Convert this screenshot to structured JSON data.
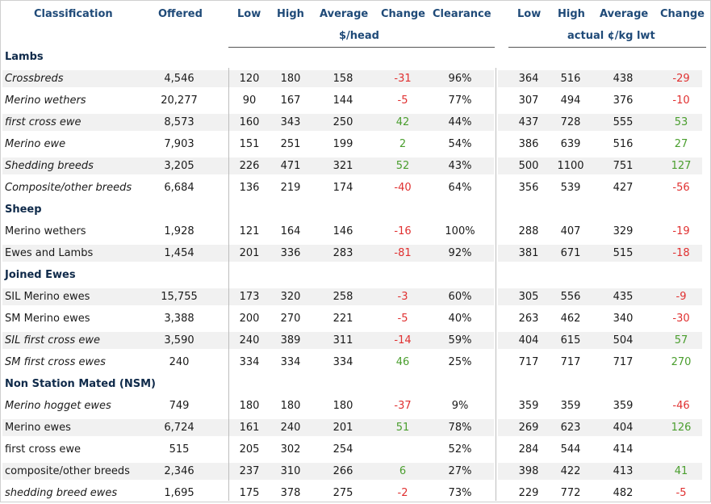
{
  "header": {
    "classification": "Classification",
    "offered": "Offered",
    "low": "Low",
    "high": "High",
    "average": "Average",
    "change": "Change",
    "clearance": "Clearance",
    "low_kg": "Low",
    "high_kg": "High",
    "average_kg": "Average",
    "change_kg": "Change",
    "unit_head": "$/head",
    "unit_kg": "actual ¢/kg lwt"
  },
  "rows": [
    {
      "type": "section",
      "label": "Lambs"
    },
    {
      "type": "data",
      "label": "Crossbreds",
      "italic": true,
      "offered": "4,546",
      "low": "120",
      "high": "180",
      "avg": "158",
      "chg": "-31",
      "clr": "96%",
      "klow": "364",
      "khigh": "516",
      "kavg": "438",
      "kchg": "-29"
    },
    {
      "type": "data",
      "label": "Merino wethers",
      "italic": true,
      "offered": "20,277",
      "low": "90",
      "high": "167",
      "avg": "144",
      "chg": "-5",
      "clr": "77%",
      "klow": "307",
      "khigh": "494",
      "kavg": "376",
      "kchg": "-10"
    },
    {
      "type": "data",
      "label": "first cross ewe",
      "italic": true,
      "offered": "8,573",
      "low": "160",
      "high": "343",
      "avg": "250",
      "chg": "42",
      "clr": "44%",
      "klow": "437",
      "khigh": "728",
      "kavg": "555",
      "kchg": "53"
    },
    {
      "type": "data",
      "label": "Merino ewe",
      "italic": true,
      "offered": "7,903",
      "low": "151",
      "high": "251",
      "avg": "199",
      "chg": "2",
      "clr": "54%",
      "klow": "386",
      "khigh": "639",
      "kavg": "516",
      "kchg": "27"
    },
    {
      "type": "data",
      "label": "Shedding breeds",
      "italic": true,
      "offered": "3,205",
      "low": "226",
      "high": "471",
      "avg": "321",
      "chg": "52",
      "clr": "43%",
      "klow": "500",
      "khigh": "1100",
      "kavg": "751",
      "kchg": "127"
    },
    {
      "type": "data",
      "label": "Composite/other breeds",
      "italic": true,
      "offered": "6,684",
      "low": "136",
      "high": "219",
      "avg": "174",
      "chg": "-40",
      "clr": "64%",
      "klow": "356",
      "khigh": "539",
      "kavg": "427",
      "kchg": "-56"
    },
    {
      "type": "section",
      "label": "Sheep"
    },
    {
      "type": "data",
      "label": "Merino wethers",
      "italic": false,
      "offered": "1,928",
      "low": "121",
      "high": "164",
      "avg": "146",
      "chg": "-16",
      "clr": "100%",
      "klow": "288",
      "khigh": "407",
      "kavg": "329",
      "kchg": "-19"
    },
    {
      "type": "data",
      "label": "Ewes and Lambs",
      "italic": false,
      "offered": "1,454",
      "low": "201",
      "high": "336",
      "avg": "283",
      "chg": "-81",
      "clr": "92%",
      "klow": "381",
      "khigh": "671",
      "kavg": "515",
      "kchg": "-18"
    },
    {
      "type": "section",
      "label": "Joined Ewes"
    },
    {
      "type": "data",
      "label": "SIL Merino ewes",
      "italic": false,
      "offered": "15,755",
      "low": "173",
      "high": "320",
      "avg": "258",
      "chg": "-3",
      "clr": "60%",
      "klow": "305",
      "khigh": "556",
      "kavg": "435",
      "kchg": "-9"
    },
    {
      "type": "data",
      "label": "SM Merino ewes",
      "italic": false,
      "offered": "3,388",
      "low": "200",
      "high": "270",
      "avg": "221",
      "chg": "-5",
      "clr": "40%",
      "klow": "263",
      "khigh": "462",
      "kavg": "340",
      "kchg": "-30"
    },
    {
      "type": "data",
      "label": "SIL first cross ewe",
      "italic": true,
      "offered": "3,590",
      "low": "240",
      "high": "389",
      "avg": "311",
      "chg": "-14",
      "clr": "59%",
      "klow": "404",
      "khigh": "615",
      "kavg": "504",
      "kchg": "57"
    },
    {
      "type": "data",
      "label": "SM first cross ewes",
      "italic": true,
      "offered": "240",
      "low": "334",
      "high": "334",
      "avg": "334",
      "chg": "46",
      "clr": "25%",
      "klow": "717",
      "khigh": "717",
      "kavg": "717",
      "kchg": "270"
    },
    {
      "type": "section",
      "label": "Non Station Mated (NSM)"
    },
    {
      "type": "data",
      "label": "Merino hogget ewes",
      "italic": true,
      "offered": "749",
      "low": "180",
      "high": "180",
      "avg": "180",
      "chg": "-37",
      "clr": "9%",
      "klow": "359",
      "khigh": "359",
      "kavg": "359",
      "kchg": "-46"
    },
    {
      "type": "data",
      "label": "Merino ewes",
      "italic": false,
      "offered": "6,724",
      "low": "161",
      "high": "240",
      "avg": "201",
      "chg": "51",
      "clr": "78%",
      "klow": "269",
      "khigh": "623",
      "kavg": "404",
      "kchg": "126"
    },
    {
      "type": "data",
      "label": "first cross ewe",
      "italic": false,
      "offered": "515",
      "low": "205",
      "high": "302",
      "avg": "254",
      "chg": "",
      "clr": "52%",
      "klow": "284",
      "khigh": "544",
      "kavg": "414",
      "kchg": ""
    },
    {
      "type": "data",
      "label": "composite/other breeds",
      "italic": false,
      "offered": "2,346",
      "low": "237",
      "high": "310",
      "avg": "266",
      "chg": "6",
      "clr": "27%",
      "klow": "398",
      "khigh": "422",
      "kavg": "413",
      "kchg": "41"
    },
    {
      "type": "data",
      "label": "shedding breed ewes",
      "italic": true,
      "offered": "1,695",
      "low": "175",
      "high": "378",
      "avg": "275",
      "chg": "-2",
      "clr": "73%",
      "klow": "229",
      "khigh": "772",
      "kavg": "482",
      "kchg": "-5"
    }
  ],
  "colors": {
    "negative": "#e03030",
    "positive": "#4a9e2e",
    "header": "#1f4a78",
    "band": "#f1f1f1"
  }
}
